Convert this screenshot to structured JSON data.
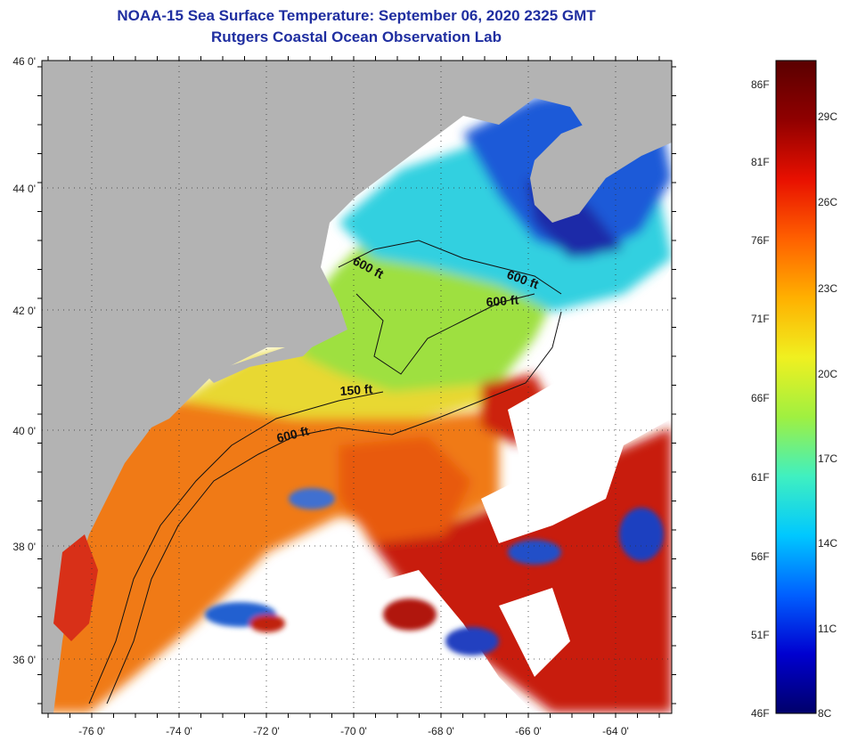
{
  "header": {
    "title": "NOAA-15 Sea Surface Temperature:  September 06, 2020 2325 GMT",
    "subtitle": "Rutgers Coastal Ocean Observation Lab"
  },
  "map": {
    "lat_labels": [
      "46 0'",
      "44 0'",
      "42 0'",
      "40 0'",
      "38 0'",
      "36 0'"
    ],
    "lon_labels": [
      "-76 0'",
      "-74 0'",
      "-72 0'",
      "-70 0'",
      "-68 0'",
      "-66 0'",
      "-64 0'"
    ],
    "depth_labels": [
      "600 ft",
      "600 ft",
      "600 ft",
      "150 ft",
      "600 ft"
    ],
    "colors": {
      "land": "#b3b3b3",
      "cloud": "#ffffff",
      "warm": "#f07818",
      "hot": "#cc1a10",
      "mid": "#e8e030",
      "cool": "#40d8d8",
      "cold": "#1a3ad0"
    }
  },
  "colorbar": {
    "f_labels": [
      "86F",
      "81F",
      "76F",
      "71F",
      "66F",
      "61F",
      "56F",
      "51F",
      "46F"
    ],
    "c_labels": [
      "29C",
      "26C",
      "23C",
      "20C",
      "17C",
      "14C",
      "11C",
      "8C"
    ],
    "stops": [
      "#00006a",
      "#0000d0",
      "#0060ff",
      "#00c8ff",
      "#40f0c0",
      "#a0f040",
      "#f0f020",
      "#ffb000",
      "#ff6000",
      "#e81000",
      "#900000",
      "#5a0000"
    ]
  }
}
